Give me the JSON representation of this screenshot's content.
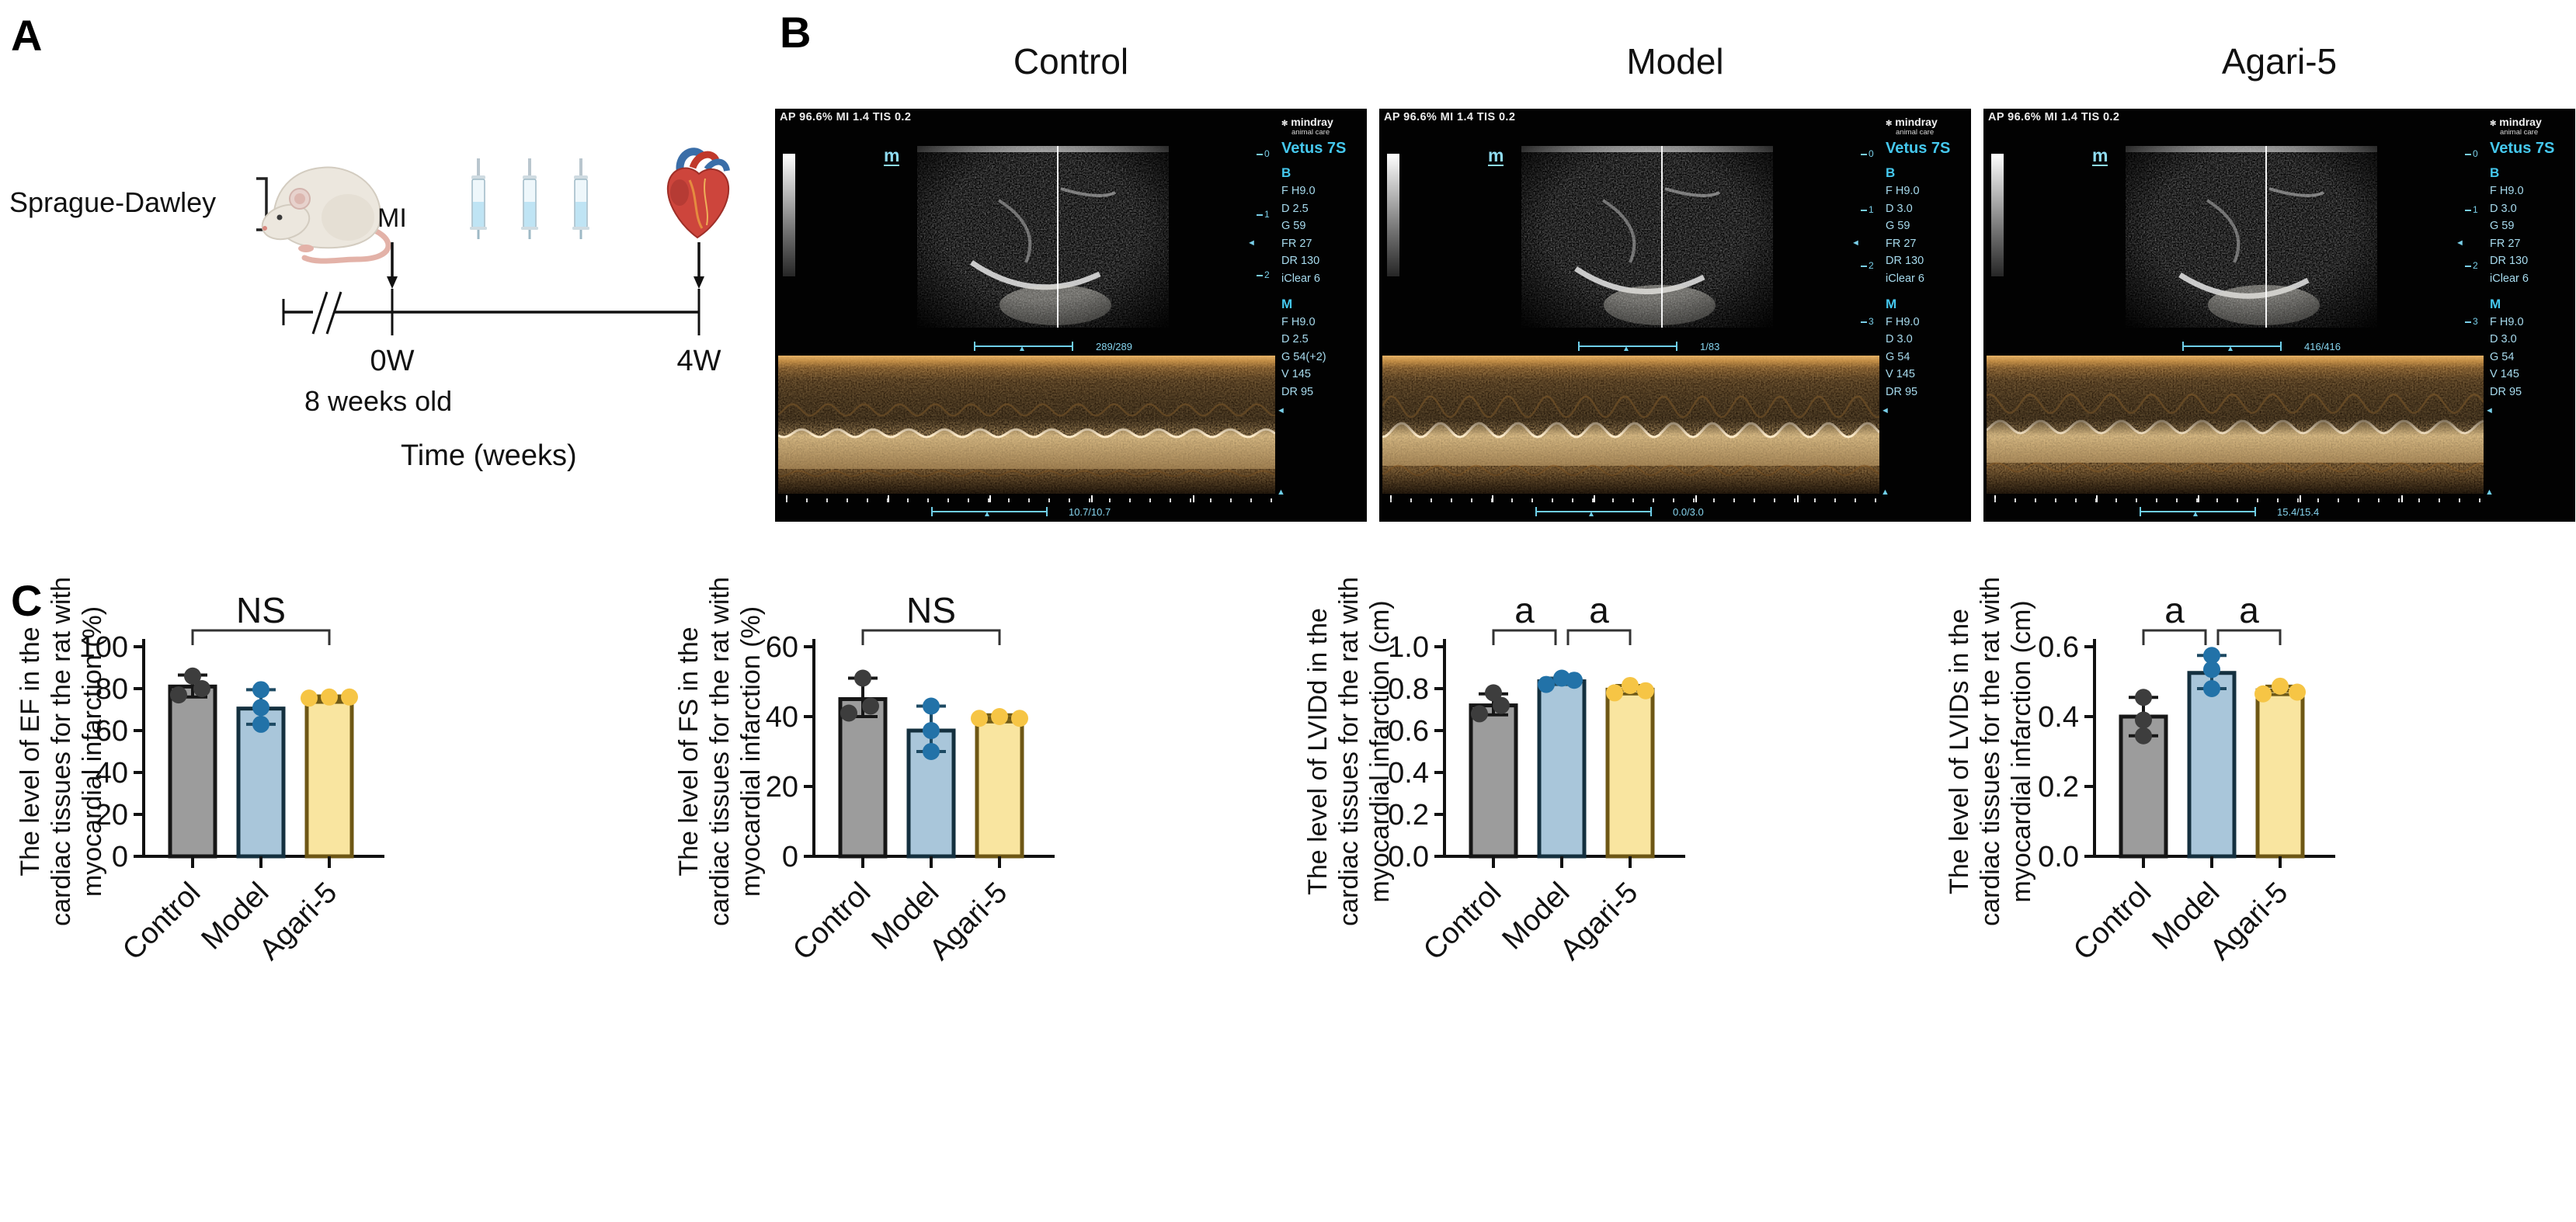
{
  "panelA": {
    "label": "A",
    "subject": "Sprague-Dawley",
    "event": "MI",
    "timeline_start": "0W",
    "timeline_end": "4W",
    "age": "8 weeks old",
    "axis": "Time (weeks)"
  },
  "panelB": {
    "label": "B",
    "scans": [
      {
        "title": "Control",
        "header": "AP 96.6% MI 1.4 TIS 0.2",
        "brand": "mindray",
        "brand_sub": "animal care",
        "device": "Vetus 7S",
        "marker": "m",
        "b_label": "B",
        "b_settings": [
          "F H9.0",
          "D 2.5",
          "G 59",
          "FR 27",
          "DR 130",
          "iClear 6"
        ],
        "m_label": "M",
        "m_settings": [
          "F H9.0",
          "D 2.5",
          "G 54(+2)",
          "V 145",
          "DR 95"
        ],
        "depth_marks": [
          "0",
          "1",
          "2"
        ],
        "frame": "289/289",
        "sweep": "10.7/10.7"
      },
      {
        "title": "Model",
        "header": "AP 96.6% MI 1.4 TIS 0.2",
        "brand": "mindray",
        "brand_sub": "animal care",
        "device": "Vetus 7S",
        "marker": "m",
        "b_label": "B",
        "b_settings": [
          "F H9.0",
          "D 3.0",
          "G 59",
          "FR 27",
          "DR 130",
          "iClear 6"
        ],
        "m_label": "M",
        "m_settings": [
          "F H9.0",
          "D 3.0",
          "G 54",
          "V 145",
          "DR 95"
        ],
        "depth_marks": [
          "0",
          "1",
          "2",
          "3"
        ],
        "frame": "1/83",
        "sweep": "0.0/3.0"
      },
      {
        "title": "Agari-5",
        "header": "AP 96.6% MI 1.4 TIS 0.2",
        "brand": "mindray",
        "brand_sub": "animal care",
        "device": "Vetus 7S",
        "marker": "m",
        "b_label": "B",
        "b_settings": [
          "F H9.0",
          "D 3.0",
          "G 59",
          "FR 27",
          "DR 130",
          "iClear 6"
        ],
        "m_label": "M",
        "m_settings": [
          "F H9.0",
          "D 3.0",
          "G 54",
          "V 145",
          "DR 95"
        ],
        "depth_marks": [
          "0",
          "1",
          "2",
          "3"
        ],
        "frame": "416/416",
        "sweep": "15.4/15.4"
      }
    ]
  },
  "panelC": {
    "label": "C",
    "colors": {
      "bar_fill": [
        "#9c9c9c",
        "#a9c6da",
        "#f9e5a0"
      ],
      "bar_edge": [
        "#161616",
        "#14303f",
        "#6e5715"
      ],
      "dot": [
        "#3d3d3d",
        "#2272a8",
        "#f6c545"
      ],
      "error": [
        "#161616",
        "#1d4962",
        "#6f5a17"
      ]
    }
  },
  "chart_data": [
    {
      "type": "bar",
      "id": "EF",
      "title": "",
      "ylabel_lines": [
        "The level of EF in the",
        "cardiac tissues for the rat with",
        "myocardial infarction (%)"
      ],
      "categories": [
        "Control",
        "Model",
        "Agari-5"
      ],
      "values": [
        81,
        70.5,
        75
      ],
      "error_low": [
        76,
        63,
        73.5
      ],
      "error_high": [
        86.5,
        79.5,
        76.5
      ],
      "points": [
        [
          77,
          80,
          86
        ],
        [
          63,
          71,
          79.5
        ],
        [
          75.5,
          76,
          76
        ]
      ],
      "point_dx": [
        [
          -18,
          12,
          0
        ],
        [
          0,
          0,
          0
        ],
        [
          -26,
          0,
          26
        ]
      ],
      "ylim": [
        0,
        100
      ],
      "yticks": [
        0,
        20,
        40,
        60,
        80,
        100
      ],
      "ytick_labels": [
        "0",
        "20",
        "40",
        "60",
        "80",
        "100"
      ],
      "annotations": [
        {
          "label": "NS",
          "from": 0,
          "to": 2
        }
      ]
    },
    {
      "type": "bar",
      "id": "FS",
      "title": "",
      "ylabel_lines": [
        "The level of FS in the",
        "cardiac tissues for the rat with",
        "myocardial infarction (%)"
      ],
      "categories": [
        "Control",
        "Model",
        "Agari-5"
      ],
      "values": [
        45,
        36,
        39.5
      ],
      "error_low": [
        40,
        30,
        38.5
      ],
      "error_high": [
        51,
        43,
        40.5
      ],
      "points": [
        [
          41,
          43,
          51
        ],
        [
          30,
          36,
          43
        ],
        [
          39.5,
          40,
          39.5
        ]
      ],
      "point_dx": [
        [
          -18,
          10,
          0
        ],
        [
          0,
          0,
          0
        ],
        [
          -26,
          0,
          26
        ]
      ],
      "ylim": [
        0,
        60
      ],
      "yticks": [
        0,
        20,
        40,
        60
      ],
      "ytick_labels": [
        "0",
        "20",
        "40",
        "60"
      ],
      "annotations": [
        {
          "label": "NS",
          "from": 0,
          "to": 2
        }
      ]
    },
    {
      "type": "bar",
      "id": "LVIDd",
      "title": "",
      "ylabel_lines": [
        "The level of LVIDd in the",
        "cardiac tissues for the rat with",
        "myocardial infarction (cm)"
      ],
      "categories": [
        "Control",
        "Model",
        "Agari-5"
      ],
      "values": [
        0.72,
        0.835,
        0.795
      ],
      "error_low": [
        0.675,
        0.82,
        0.775
      ],
      "error_high": [
        0.775,
        0.85,
        0.815
      ],
      "points": [
        [
          0.68,
          0.72,
          0.78
        ],
        [
          0.82,
          0.85,
          0.84
        ],
        [
          0.78,
          0.815,
          0.79
        ]
      ],
      "point_dx": [
        [
          -18,
          10,
          0
        ],
        [
          -20,
          0,
          16
        ],
        [
          -20,
          0,
          20
        ]
      ],
      "ylim": [
        0,
        1.0
      ],
      "yticks": [
        0,
        0.2,
        0.4,
        0.6,
        0.8,
        1.0
      ],
      "ytick_labels": [
        "0.0",
        "0.2",
        "0.4",
        "0.6",
        "0.8",
        "1.0"
      ],
      "annotations": [
        {
          "label": "a",
          "from": 0,
          "to": 1
        },
        {
          "label": "a",
          "from": 1,
          "to": 2
        }
      ]
    },
    {
      "type": "bar",
      "id": "LVIDs",
      "title": "",
      "ylabel_lines": [
        "The level of LVIDs in the",
        "cardiac tissues for the rat with",
        "myocardial infarction (cm)"
      ],
      "categories": [
        "Control",
        "Model",
        "Agari-5"
      ],
      "values": [
        0.4,
        0.525,
        0.475
      ],
      "error_low": [
        0.345,
        0.48,
        0.463
      ],
      "error_high": [
        0.455,
        0.575,
        0.487
      ],
      "points": [
        [
          0.345,
          0.39,
          0.455
        ],
        [
          0.48,
          0.535,
          0.575
        ],
        [
          0.465,
          0.487,
          0.47
        ]
      ],
      "point_dx": [
        [
          0,
          0,
          0
        ],
        [
          0,
          0,
          0
        ],
        [
          -22,
          0,
          22
        ]
      ],
      "ylim": [
        0,
        0.6
      ],
      "yticks": [
        0,
        0.2,
        0.4,
        0.6
      ],
      "ytick_labels": [
        "0.0",
        "0.2",
        "0.4",
        "0.6"
      ],
      "annotations": [
        {
          "label": "a",
          "from": 0,
          "to": 1
        },
        {
          "label": "a",
          "from": 1,
          "to": 2
        }
      ]
    }
  ]
}
